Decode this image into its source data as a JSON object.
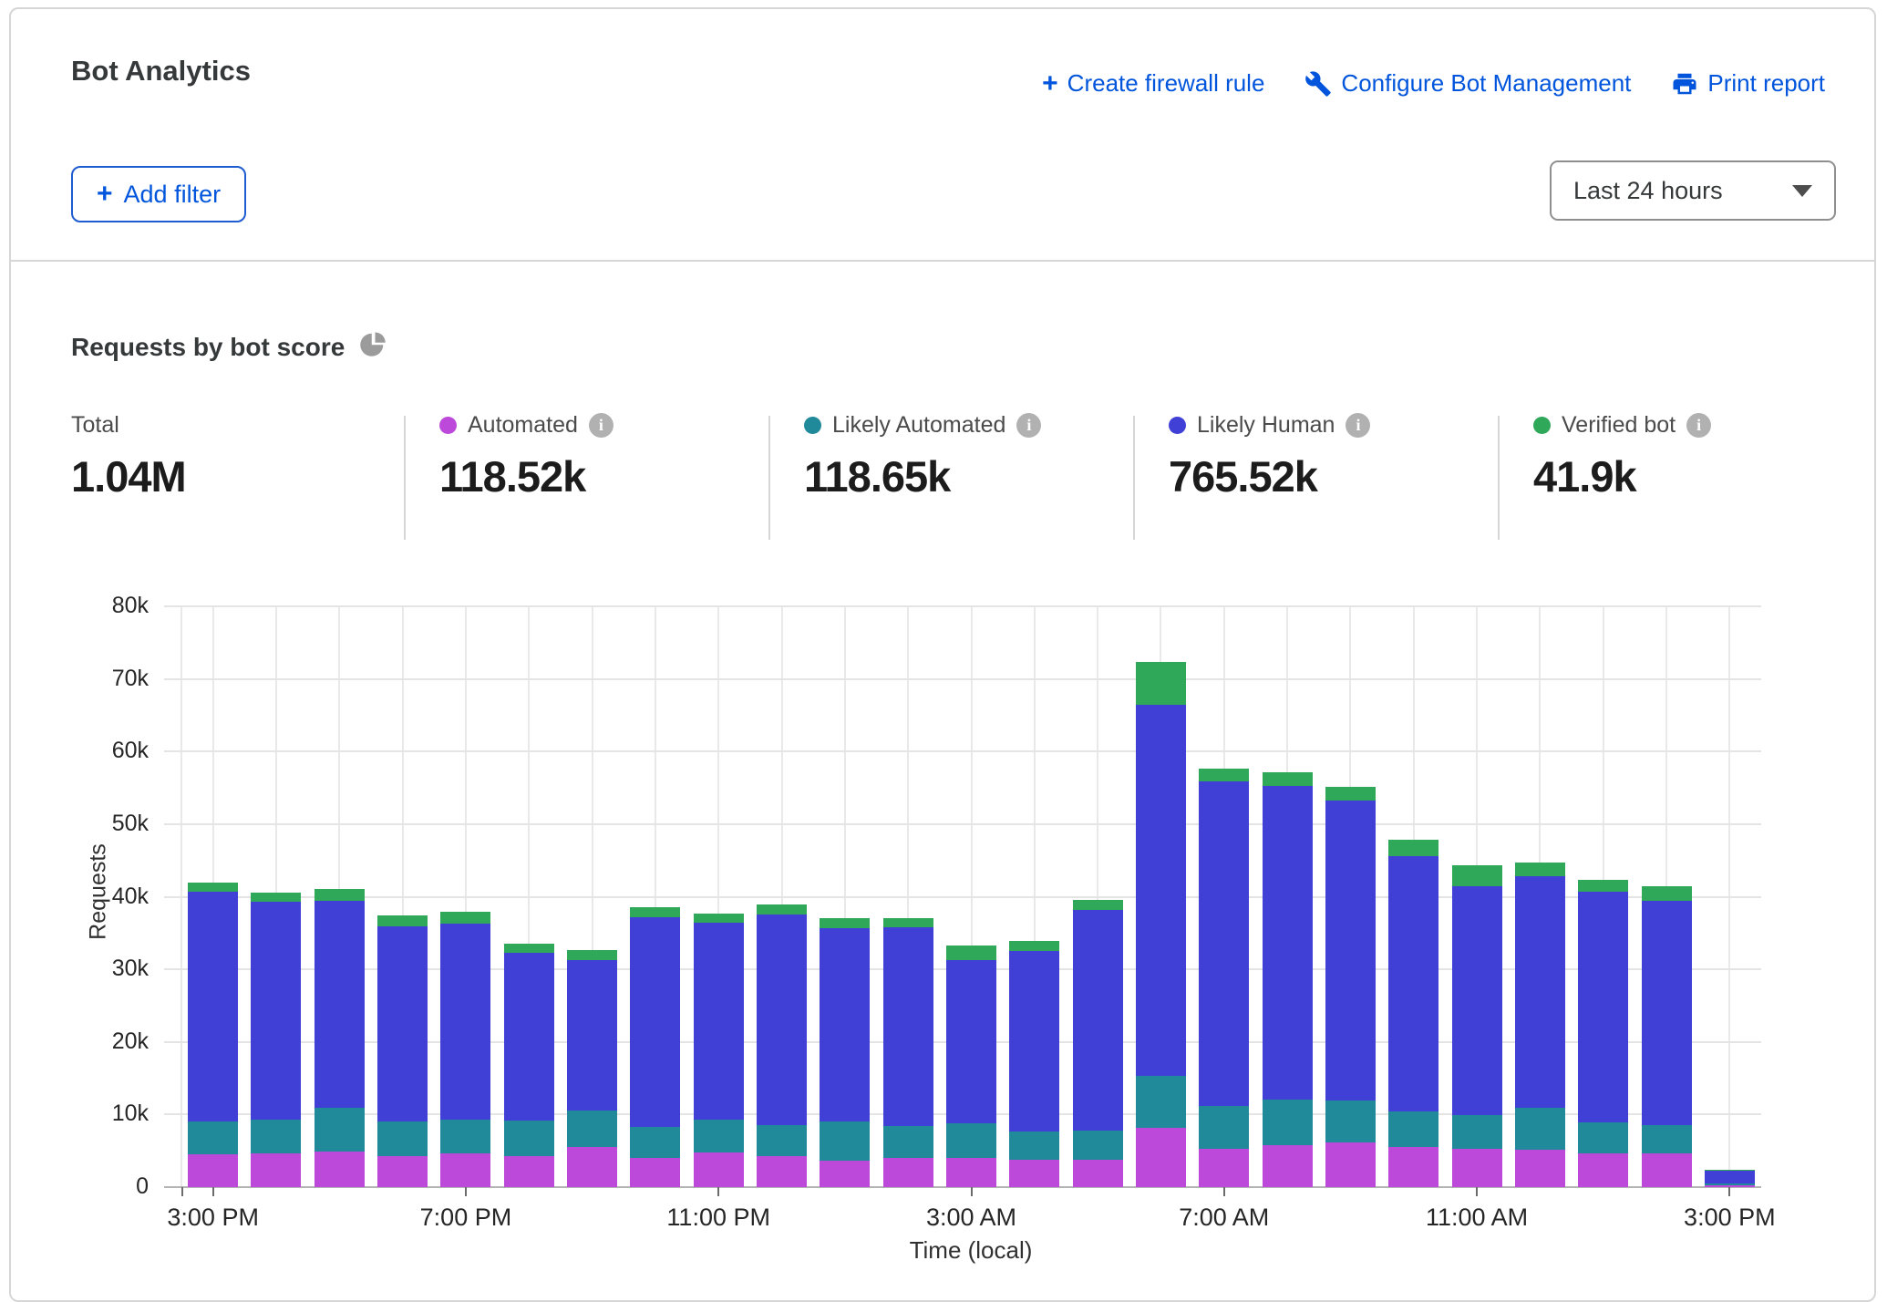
{
  "header": {
    "title": "Bot Analytics",
    "actions": [
      {
        "label": "Create firewall rule",
        "icon": "plus-icon"
      },
      {
        "label": "Configure Bot Management",
        "icon": "wrench-icon"
      },
      {
        "label": "Print report",
        "icon": "printer-icon"
      }
    ],
    "add_filter_label": "Add filter",
    "time_range": "Last 24 hours"
  },
  "icons": {
    "plus": "+",
    "info": "i"
  },
  "section": {
    "title": "Requests by bot score"
  },
  "stats": [
    {
      "label": "Total",
      "value": "1.04M"
    },
    {
      "label": "Automated",
      "value": "118.52k",
      "color": "#bc49da"
    },
    {
      "label": "Likely Automated",
      "value": "118.65k",
      "color": "#20899a"
    },
    {
      "label": "Likely Human",
      "value": "765.52k",
      "color": "#4140d6"
    },
    {
      "label": "Verified bot",
      "value": "41.9k",
      "color": "#2fa859"
    }
  ],
  "chart_data": {
    "type": "bar",
    "stacked": true,
    "title": "Requests by bot score",
    "xlabel": "Time (local)",
    "ylabel": "Requests",
    "ylim": [
      0,
      80000
    ],
    "yticks": [
      "0",
      "10k",
      "20k",
      "30k",
      "40k",
      "50k",
      "60k",
      "70k",
      "80k"
    ],
    "grid": "horizontal every 10k, vertical every hour",
    "legend_position": "top",
    "x": [
      "3:00 PM",
      "4:00 PM",
      "5:00 PM",
      "6:00 PM",
      "7:00 PM",
      "8:00 PM",
      "9:00 PM",
      "10:00 PM",
      "11:00 PM",
      "12:00 AM",
      "1:00 AM",
      "2:00 AM",
      "3:00 AM",
      "4:00 AM",
      "5:00 AM",
      "6:00 AM",
      "7:00 AM",
      "8:00 AM",
      "9:00 AM",
      "10:00 AM",
      "11:00 AM",
      "12:00 PM",
      "1:00 PM",
      "2:00 PM",
      "3:00 PM"
    ],
    "x_tick_indices": [
      0,
      4,
      8,
      12,
      16,
      20,
      24
    ],
    "series": [
      {
        "name": "Automated",
        "color": "#bc49da",
        "values": [
          4500,
          4600,
          4900,
          4300,
          4600,
          4300,
          5500,
          4000,
          4800,
          4300,
          3700,
          4000,
          4000,
          3800,
          3800,
          8200,
          5300,
          5800,
          6100,
          5500,
          5300,
          5200,
          4700,
          4600,
          300
        ]
      },
      {
        "name": "Likely Automated",
        "color": "#20899a",
        "values": [
          4600,
          4700,
          6000,
          4700,
          4700,
          4900,
          5100,
          4300,
          4500,
          4300,
          5300,
          4400,
          4800,
          3900,
          4000,
          7100,
          5900,
          6200,
          5800,
          4900,
          4600,
          5700,
          4200,
          3900,
          200
        ]
      },
      {
        "name": "Likely Human",
        "color": "#4140d6",
        "values": [
          31600,
          30000,
          28600,
          26900,
          27000,
          23100,
          20700,
          28900,
          27100,
          29000,
          26700,
          27400,
          22500,
          24800,
          30400,
          51100,
          44700,
          43300,
          41400,
          35200,
          31600,
          31900,
          31800,
          30900,
          1800
        ]
      },
      {
        "name": "Verified bot",
        "color": "#2fa859",
        "values": [
          1300,
          1300,
          1600,
          1500,
          1600,
          1300,
          1300,
          1300,
          1300,
          1400,
          1300,
          1200,
          2000,
          1400,
          1300,
          5900,
          1800,
          1900,
          1900,
          2200,
          2800,
          1900,
          1700,
          2100,
          100
        ]
      }
    ]
  }
}
